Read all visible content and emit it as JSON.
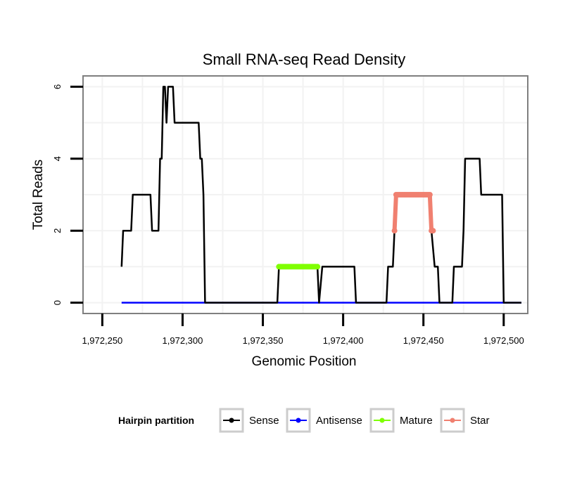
{
  "chart_data": {
    "type": "line",
    "title": "Small RNA-seq Read Density",
    "xlabel": "Genomic Position",
    "ylabel": "Total Reads",
    "xlim": [
      1972238,
      1972515
    ],
    "ylim": [
      -0.3,
      6.3
    ],
    "x_ticks": [
      1972250,
      1972300,
      1972350,
      1972400,
      1972450,
      1972500
    ],
    "x_tick_labels": [
      "1,972,250",
      "1,972,300",
      "1,972,350",
      "1,972,400",
      "1,972,450",
      "1,972,500"
    ],
    "y_ticks": [
      0,
      2,
      4,
      6
    ],
    "y_tick_labels": [
      "0",
      "2",
      "4",
      "6"
    ],
    "grid": true,
    "legend": {
      "title": "Hairpin partition",
      "position": "bottom",
      "entries": [
        "Sense",
        "Antisense",
        "Mature",
        "Star"
      ]
    },
    "series": [
      {
        "name": "Sense",
        "color": "#000000",
        "points": [
          [
            1972262,
            1
          ],
          [
            1972263,
            2
          ],
          [
            1972268,
            2
          ],
          [
            1972269,
            3
          ],
          [
            1972280,
            3
          ],
          [
            1972281,
            2
          ],
          [
            1972285,
            2
          ],
          [
            1972286,
            4
          ],
          [
            1972287,
            4
          ],
          [
            1972288,
            6
          ],
          [
            1972289,
            6
          ],
          [
            1972290,
            5
          ],
          [
            1972291,
            6
          ],
          [
            1972294,
            6
          ],
          [
            1972295,
            5
          ],
          [
            1972310,
            5
          ],
          [
            1972311,
            4
          ],
          [
            1972312,
            4
          ],
          [
            1972313,
            3
          ],
          [
            1972314,
            0
          ],
          [
            1972359,
            0
          ],
          [
            1972360,
            1
          ],
          [
            1972384,
            1
          ],
          [
            1972385,
            0
          ],
          [
            1972387,
            1
          ],
          [
            1972407,
            1
          ],
          [
            1972408,
            0
          ],
          [
            1972427,
            0
          ],
          [
            1972428,
            1
          ],
          [
            1972431,
            1
          ],
          [
            1972432,
            2
          ],
          [
            1972433,
            3
          ],
          [
            1972454,
            3
          ],
          [
            1972455,
            2
          ],
          [
            1972457,
            1
          ],
          [
            1972459,
            1
          ],
          [
            1972460,
            0
          ],
          [
            1972468,
            0
          ],
          [
            1972469,
            1
          ],
          [
            1972474,
            1
          ],
          [
            1972475,
            2
          ],
          [
            1972476,
            4
          ],
          [
            1972485,
            4
          ],
          [
            1972486,
            3
          ],
          [
            1972499,
            3
          ],
          [
            1972500,
            0
          ],
          [
            1972511,
            0
          ]
        ]
      },
      {
        "name": "Antisense",
        "color": "#0000ff",
        "points": [
          [
            1972262,
            0
          ],
          [
            1972511,
            0
          ]
        ]
      },
      {
        "name": "Mature",
        "color": "#7fff00",
        "points": [
          [
            1972360,
            1
          ],
          [
            1972361,
            1
          ],
          [
            1972362,
            1
          ],
          [
            1972363,
            1
          ],
          [
            1972364,
            1
          ],
          [
            1972365,
            1
          ],
          [
            1972366,
            1
          ],
          [
            1972367,
            1
          ],
          [
            1972368,
            1
          ],
          [
            1972369,
            1
          ],
          [
            1972370,
            1
          ],
          [
            1972371,
            1
          ],
          [
            1972372,
            1
          ],
          [
            1972373,
            1
          ],
          [
            1972374,
            1
          ],
          [
            1972375,
            1
          ],
          [
            1972376,
            1
          ],
          [
            1972377,
            1
          ],
          [
            1972378,
            1
          ],
          [
            1972379,
            1
          ],
          [
            1972380,
            1
          ],
          [
            1972381,
            1
          ],
          [
            1972382,
            1
          ],
          [
            1972383,
            1
          ],
          [
            1972384,
            1
          ]
        ]
      },
      {
        "name": "Star",
        "color": "#f08070",
        "points": [
          [
            1972432,
            2
          ],
          [
            1972433,
            3
          ],
          [
            1972434,
            3
          ],
          [
            1972435,
            3
          ],
          [
            1972436,
            3
          ],
          [
            1972437,
            3
          ],
          [
            1972438,
            3
          ],
          [
            1972439,
            3
          ],
          [
            1972440,
            3
          ],
          [
            1972441,
            3
          ],
          [
            1972442,
            3
          ],
          [
            1972443,
            3
          ],
          [
            1972444,
            3
          ],
          [
            1972445,
            3
          ],
          [
            1972446,
            3
          ],
          [
            1972447,
            3
          ],
          [
            1972448,
            3
          ],
          [
            1972449,
            3
          ],
          [
            1972450,
            3
          ],
          [
            1972451,
            3
          ],
          [
            1972452,
            3
          ],
          [
            1972453,
            3
          ],
          [
            1972454,
            3
          ],
          [
            1972455,
            2
          ],
          [
            1972456,
            2
          ]
        ]
      }
    ]
  }
}
